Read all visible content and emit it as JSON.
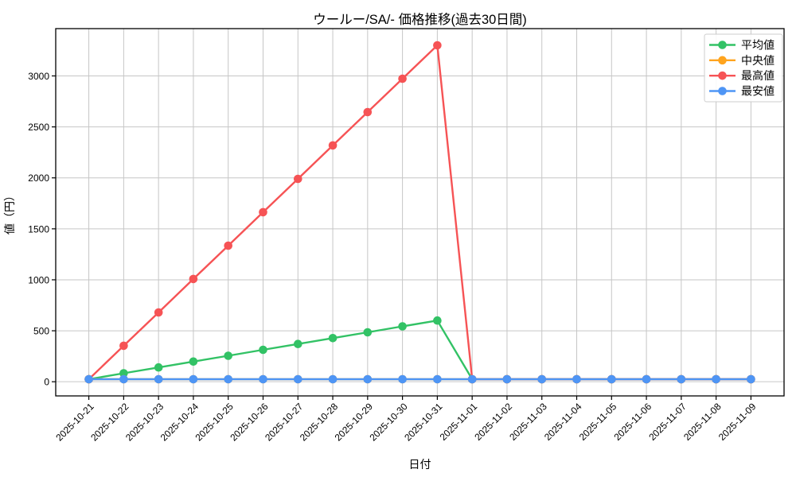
{
  "chart_data": {
    "type": "line",
    "title": "ウールー/SA/- 価格推移(過去30日間)",
    "xlabel": "日付",
    "ylabel": "値（円）",
    "categories": [
      "2025-10-21",
      "2025-10-22",
      "2025-10-23",
      "2025-10-24",
      "2025-10-25",
      "2025-10-26",
      "2025-10-27",
      "2025-10-28",
      "2025-10-29",
      "2025-10-30",
      "2025-10-31",
      "2025-11-01",
      "2025-11-02",
      "2025-11-03",
      "2025-11-04",
      "2025-11-05",
      "2025-11-06",
      "2025-11-07",
      "2025-11-08",
      "2025-11-09"
    ],
    "series": [
      {
        "key": "average",
        "name": "平均値",
        "color": "#32c265",
        "values": [
          25,
          83,
          140,
          198,
          255,
          313,
          370,
          428,
          485,
          543,
          600,
          25,
          25,
          25,
          25,
          25,
          25,
          25,
          25,
          25
        ]
      },
      {
        "key": "median",
        "name": "中央値",
        "color": "#ffa41e",
        "values": [
          25,
          25,
          25,
          25,
          25,
          25,
          25,
          25,
          25,
          25,
          25,
          25,
          25,
          25,
          25,
          25,
          25,
          25,
          25,
          25
        ]
      },
      {
        "key": "max",
        "name": "最高値",
        "color": "#f65355",
        "values": [
          25,
          353,
          680,
          1008,
          1335,
          1663,
          1990,
          2318,
          2645,
          2973,
          3300,
          25,
          25,
          25,
          25,
          25,
          25,
          25,
          25,
          25
        ]
      },
      {
        "key": "min",
        "name": "最安値",
        "color": "#4e95f5",
        "values": [
          25,
          25,
          25,
          25,
          25,
          25,
          25,
          25,
          25,
          25,
          25,
          25,
          25,
          25,
          25,
          25,
          25,
          25,
          25,
          25
        ]
      }
    ],
    "yticks": [
      0,
      500,
      1000,
      1500,
      2000,
      2500,
      3000
    ],
    "ylim": [
      -139,
      3464
    ],
    "xlim": [
      -0.95,
      19.95
    ],
    "grid": true,
    "grid_color": "#c6c6c6",
    "spine_color": "#000000",
    "background": "#ffffff",
    "legend_position": "upper-right",
    "legend_border_color": "#cccccc",
    "x_tick_rotation": -45
  }
}
